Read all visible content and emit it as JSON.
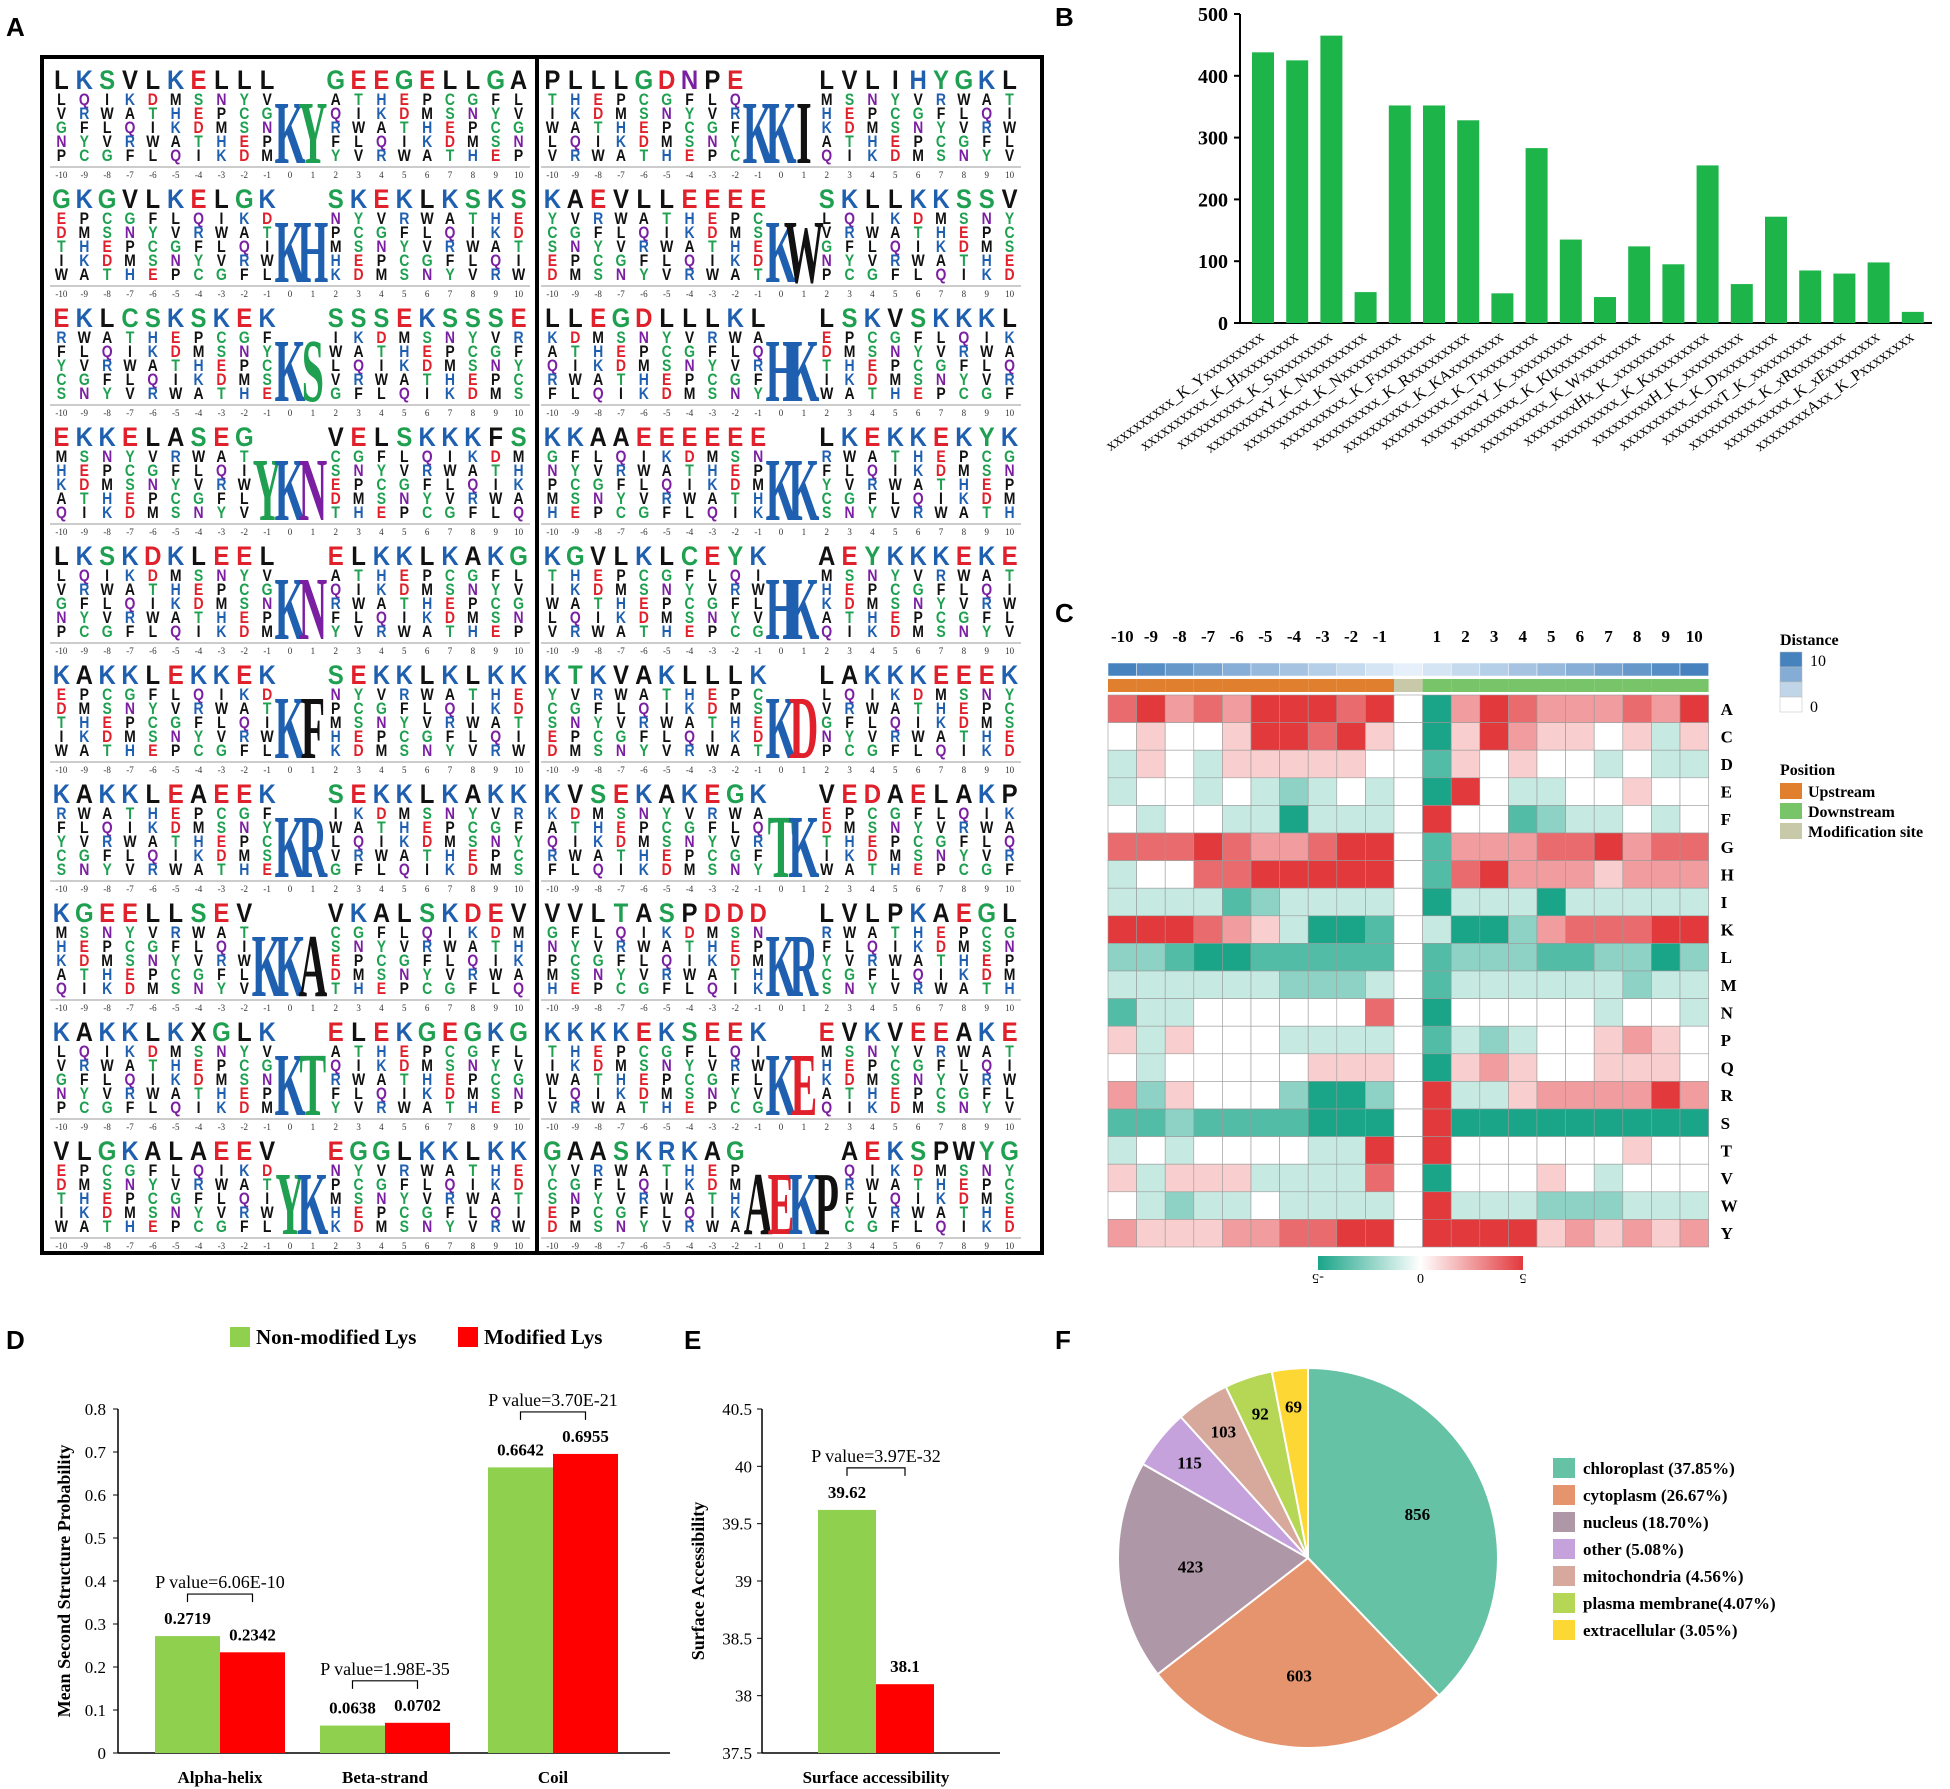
{
  "panels": {
    "a": "A",
    "b": "B",
    "c": "C",
    "d": "D",
    "e": "E",
    "f": "F"
  },
  "panel_a": {
    "positions": [
      "-10",
      "-9",
      "-8",
      "-7",
      "-6",
      "-5",
      "-4",
      "-3",
      "-2",
      "-1",
      "0",
      "1",
      "2",
      "3",
      "4",
      "5",
      "6",
      "7",
      "8",
      "9",
      "10"
    ],
    "left_motifs": [
      {
        "big": [
          "K",
          "Y"
        ],
        "top_up": "LKSVLKEL L",
        "top_down": "GEEGELLGA"
      },
      {
        "big": [
          "K",
          "H"
        ],
        "top_up": "GKGVLKEL ",
        "top_down": "SKEKLKSKS"
      },
      {
        "big": [
          "K",
          "S"
        ],
        "top_up": "EKLCSKSK ",
        "top_down": "SSSEKSSSE"
      },
      {
        "big": [
          "Y",
          "K",
          "N"
        ],
        "top_up": "EKKELASEG",
        "top_down": "VELSKKKFS"
      },
      {
        "big": [
          "K",
          "N"
        ],
        "top_up": "LKSKDKLEE",
        "top_down": "ELKKLKAKG"
      },
      {
        "big": [
          "K",
          "F"
        ],
        "top_up": "KAKKLEKKE",
        "top_down": "SEKKLKLKK"
      },
      {
        "big": [
          "K",
          "R"
        ],
        "top_up": "KAKKLEAEE",
        "top_down": "SEKKLKAKK"
      },
      {
        "big": [
          "K",
          "K",
          "A"
        ],
        "top_up": "KGEELLSEVV",
        "top_down": "VKALSKDE"
      },
      {
        "big": [
          "K",
          "T"
        ],
        "top_up": "KAKKLKXGL",
        "top_down": "ELEKGEGKG"
      },
      {
        "big": [
          "Y",
          "K"
        ],
        "top_up": "VLGKALAEE",
        "top_down": "EGGLKKLKK"
      }
    ],
    "right_motifs": [
      {
        "big": [
          "K",
          "K",
          "I"
        ],
        "top_up": "PLLLGDNPEH",
        "top_down": "LVLIHYGK"
      },
      {
        "big": [
          "K",
          "W"
        ],
        "top_up": "KAEVLLEEEE",
        "top_down": "SKLLKKSSV"
      },
      {
        "big": [
          "H",
          "K"
        ],
        "top_up": "LLEGDLLLK",
        "top_down": "LSKVSKKKL"
      },
      {
        "big": [
          "K",
          "K"
        ],
        "top_up": "KKAAEEEEEE",
        "top_down": "LKEKKEKYK"
      },
      {
        "big": [
          "H",
          "K"
        ],
        "top_up": "KGVLKLCEY",
        "top_down": "AEYKKKEKE"
      },
      {
        "big": [
          "K",
          "D"
        ],
        "top_up": "KTKVAKLLL",
        "top_down": "LAKKKEEEK"
      },
      {
        "big": [
          "T",
          "K"
        ],
        "top_up": "KVSEKAKEG",
        "top_down": "VEDAELAKPK"
      },
      {
        "big": [
          "K",
          "R"
        ],
        "top_up": "VVLTASPDDD",
        "top_down": "LVLPKAEG"
      },
      {
        "big": [
          "K",
          "E"
        ],
        "top_up": "KKKKEKSEE",
        "top_down": "EVKVEEAK"
      },
      {
        "big": [
          "A",
          "E",
          "K",
          "P"
        ],
        "top_up": "GAASKRKA",
        "top_down": "AEKSPWYG"
      }
    ]
  },
  "chart_data": [
    {
      "panel": "B",
      "type": "bar",
      "categories": [
        "xxxxxxxxxx_K_Yxxxxxxxxx",
        "xxxxxxxxxx_K_Hxxxxxxxxx",
        "xxxxxxxxxx_K_Sxxxxxxxxx",
        "xxxxxxxxxY_K_Nxxxxxxxxx",
        "xxxxxxxxxx_K_Nxxxxxxxxx",
        "xxxxxxxxxx_K_Fxxxxxxxxx",
        "xxxxxxxxxx_K_Rxxxxxxxxx",
        "xxxxxxxxxx_K_KAxxxxxxxx",
        "xxxxxxxxxx_K_Txxxxxxxxx",
        "xxxxxxxxxY_K_xxxxxxxxx",
        "xxxxxxxxxx_K_KIxxxxxxxx",
        "xxxxxxxxxx_K_Wxxxxxxxxx",
        "xxxxxxxxHx_K_xxxxxxxxx",
        "xxxxxxxxxx_K_Kxxxxxxxxx",
        "xxxxxxxxxH_K_xxxxxxxxx",
        "xxxxxxxxxx_K_Dxxxxxxxxx",
        "xxxxxxxxxT_K_xxxxxxxxx",
        "xxxxxxxxxx_K_xRxxxxxxxx",
        "xxxxxxxxxx_K_xExxxxxxxx",
        "xxxxxxxxAxx_K_Pxxxxxxxx"
      ],
      "values": [
        438,
        425,
        465,
        50,
        352,
        352,
        328,
        48,
        283,
        135,
        42,
        124,
        95,
        255,
        63,
        172,
        85,
        80,
        98,
        18
      ],
      "ylim": [
        0,
        500
      ],
      "yticks": [
        "0",
        "100",
        "200",
        "300",
        "400",
        "500"
      ],
      "color": "#1db54a"
    },
    {
      "panel": "C",
      "type": "heatmap",
      "columns": [
        "-10",
        "-9",
        "-8",
        "-7",
        "-6",
        "-5",
        "-4",
        "-3",
        "-2",
        "-1",
        "",
        "1",
        "2",
        "3",
        "4",
        "5",
        "6",
        "7",
        "8",
        "9",
        "10"
      ],
      "rows": [
        "A",
        "C",
        "D",
        "E",
        "F",
        "G",
        "H",
        "I",
        "K",
        "L",
        "M",
        "N",
        "P",
        "Q",
        "R",
        "S",
        "T",
        "V",
        "W",
        "Y"
      ],
      "values": [
        [
          3,
          4,
          2,
          3,
          2,
          4,
          4,
          4,
          3,
          4,
          0,
          -4,
          2,
          4,
          3,
          2,
          2,
          2,
          3,
          2,
          4
        ],
        [
          0,
          1,
          0,
          0,
          1,
          4,
          4,
          3,
          4,
          1,
          0,
          -4,
          1,
          4,
          2,
          1,
          1,
          0,
          1,
          -1,
          1
        ],
        [
          -1,
          1,
          0,
          -1,
          1,
          1,
          1,
          1,
          1,
          0,
          0,
          -3,
          1,
          0,
          1,
          0,
          0,
          -1,
          0,
          -1,
          -1
        ],
        [
          -1,
          0,
          0,
          -1,
          0,
          -1,
          -2,
          -1,
          0,
          -1,
          0,
          -4,
          4,
          0,
          -1,
          -1,
          0,
          0,
          1,
          0,
          0
        ],
        [
          0,
          -1,
          0,
          0,
          -1,
          -1,
          -4,
          -1,
          -1,
          -1,
          0,
          4,
          0,
          0,
          -3,
          -2,
          -1,
          -1,
          0,
          -1,
          0
        ],
        [
          3,
          3,
          3,
          4,
          3,
          2,
          2,
          3,
          4,
          4,
          0,
          -3,
          2,
          2,
          2,
          3,
          3,
          4,
          2,
          3,
          3
        ],
        [
          -1,
          0,
          0,
          3,
          3,
          4,
          4,
          4,
          4,
          4,
          0,
          -3,
          3,
          4,
          2,
          2,
          2,
          1,
          2,
          2,
          2
        ],
        [
          -1,
          -1,
          -1,
          -1,
          -3,
          -2,
          -1,
          -1,
          -1,
          -1,
          0,
          -4,
          -1,
          -1,
          -1,
          -4,
          -1,
          -1,
          -1,
          -1,
          -1
        ],
        [
          4,
          4,
          4,
          3,
          2,
          1,
          -1,
          -4,
          -4,
          -3,
          0,
          -1,
          -4,
          -4,
          -2,
          2,
          3,
          3,
          3,
          4,
          4
        ],
        [
          -2,
          -2,
          -3,
          -4,
          -4,
          -3,
          -3,
          -3,
          -3,
          -3,
          0,
          -3,
          -2,
          -2,
          -2,
          -3,
          -3,
          -2,
          -2,
          -4,
          -2
        ],
        [
          -1,
          -1,
          -1,
          -1,
          -1,
          -1,
          -2,
          -2,
          -2,
          -1,
          0,
          -3,
          -1,
          -1,
          -1,
          -1,
          -1,
          -1,
          -2,
          -1,
          -1
        ],
        [
          -3,
          -1,
          -1,
          0,
          0,
          0,
          0,
          0,
          0,
          3,
          0,
          -4,
          0,
          0,
          0,
          0,
          0,
          -1,
          0,
          0,
          -1
        ],
        [
          1,
          -1,
          1,
          0,
          0,
          0,
          -1,
          -1,
          -1,
          -1,
          0,
          -3,
          -1,
          -2,
          -1,
          0,
          0,
          1,
          2,
          1,
          0
        ],
        [
          0,
          -1,
          0,
          0,
          0,
          0,
          0,
          1,
          1,
          1,
          0,
          -4,
          1,
          2,
          1,
          0,
          0,
          1,
          1,
          1,
          0
        ],
        [
          2,
          -2,
          1,
          0,
          0,
          0,
          -2,
          -4,
          -4,
          -2,
          0,
          4,
          -1,
          -1,
          1,
          2,
          2,
          2,
          2,
          4,
          2
        ],
        [
          -3,
          -3,
          -2,
          -3,
          -3,
          -3,
          -3,
          -4,
          -4,
          -4,
          0,
          4,
          -4,
          -4,
          -4,
          -4,
          -4,
          -4,
          -4,
          -4,
          -4
        ],
        [
          -1,
          0,
          -1,
          0,
          0,
          0,
          0,
          -1,
          -1,
          4,
          0,
          4,
          0,
          0,
          0,
          0,
          0,
          0,
          1,
          0,
          0
        ],
        [
          1,
          -1,
          1,
          1,
          1,
          -1,
          -1,
          -1,
          -1,
          3,
          0,
          -4,
          0,
          0,
          0,
          1,
          0,
          -1,
          0,
          0,
          0
        ],
        [
          0,
          -1,
          -2,
          -1,
          -1,
          0,
          -1,
          -1,
          -1,
          -1,
          0,
          4,
          -1,
          -1,
          -1,
          -2,
          -2,
          -2,
          -1,
          -1,
          -1
        ],
        [
          2,
          1,
          1,
          1,
          2,
          2,
          3,
          3,
          4,
          4,
          0,
          4,
          4,
          4,
          4,
          1,
          2,
          1,
          2,
          1,
          2
        ]
      ],
      "legend_distance_title": "Distance",
      "legend_distance_max": "10",
      "legend_distance_min": "0",
      "legend_position_title": "Position",
      "legend_position_items": [
        "Upstream",
        "Downstream",
        "Modification site"
      ],
      "colorbar_labels": [
        "-5",
        "0",
        "5"
      ],
      "color_low": "#1aa589",
      "color_high": "#e2393d"
    },
    {
      "panel": "D",
      "type": "bar",
      "ylabel": "Mean Second Structure Probability",
      "categories": [
        "Alpha-helix",
        "Beta-strand",
        "Coil"
      ],
      "series": [
        {
          "name": "Non-modified Lys",
          "color": "#8fd14f",
          "values": [
            0.2719,
            0.0638,
            0.6642
          ],
          "labels": [
            "0.2719",
            "0.0638",
            "0.6642"
          ]
        },
        {
          "name": "Modified Lys",
          "color": "#ff0000",
          "values": [
            0.2342,
            0.0702,
            0.6955
          ],
          "labels": [
            "0.2342",
            "0.0702",
            "0.6955"
          ]
        }
      ],
      "pvalues": [
        "P value=6.06E-10",
        "P value=1.98E-35",
        "P value=3.70E-21"
      ],
      "ylim": [
        0,
        0.8
      ],
      "yticks": [
        "0",
        "0.1",
        "0.2",
        "0.3",
        "0.4",
        "0.5",
        "0.6",
        "0.7",
        "0.8"
      ]
    },
    {
      "panel": "E",
      "type": "bar",
      "ylabel": "Surface Accessibility",
      "categories": [
        "Surface accessibility"
      ],
      "series": [
        {
          "name": "Non-modified Lys",
          "color": "#8fd14f",
          "values": [
            39.62
          ],
          "labels": [
            "39.62"
          ]
        },
        {
          "name": "Modified Lys",
          "color": "#ff0000",
          "values": [
            38.1
          ],
          "labels": [
            "38.1"
          ]
        }
      ],
      "pvalue": "P value=3.97E-32",
      "ylim": [
        37.5,
        40.5
      ],
      "yticks": [
        "37.5",
        "38",
        "38.5",
        "39",
        "39.5",
        "40",
        "40.5"
      ]
    },
    {
      "panel": "F",
      "type": "pie",
      "slices": [
        {
          "label": "chloroplast (37.85%)",
          "value": 856,
          "color": "#66c2a5"
        },
        {
          "label": "cytoplasm (26.67%)",
          "value": 603,
          "color": "#e5946d"
        },
        {
          "label": "nucleus (18.70%)",
          "value": 423,
          "color": "#ae97a6"
        },
        {
          "label": "other (5.08%)",
          "value": 115,
          "color": "#c6a2dd"
        },
        {
          "label": "mitochondria (4.56%)",
          "value": 103,
          "color": "#d7a99d"
        },
        {
          "label": "plasma membrane(4.07%)",
          "value": 92,
          "color": "#b6d655"
        },
        {
          "label": "extracellular (3.05%)",
          "value": 69,
          "color": "#fdd835"
        }
      ]
    }
  ]
}
